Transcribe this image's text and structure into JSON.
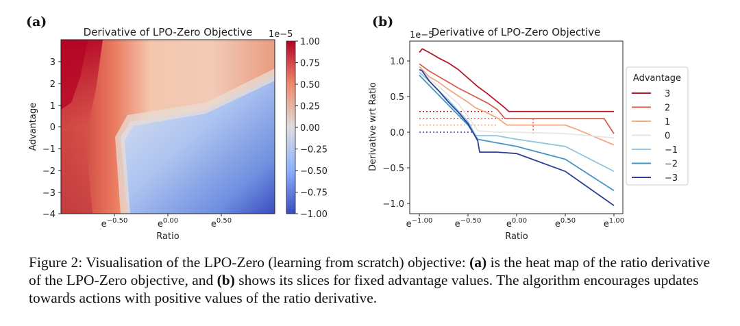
{
  "panel_a": {
    "tag": "(a)",
    "chart_data": {
      "type": "heatmap",
      "title": "Derivative of LPO-Zero Objective",
      "xlabel": "Ratio",
      "ylabel": "Advantage",
      "x_ticks": [
        "e^{-0.50}",
        "e^{0.00}",
        "e^{0.50}"
      ],
      "y_ticks": [
        "3",
        "2",
        "1",
        "0",
        "−1",
        "−2",
        "−3",
        "−4"
      ],
      "xlim": [
        -1.0,
        1.0
      ],
      "ylim": [
        -4,
        4
      ],
      "colorbar": {
        "scale_label": "1e−5",
        "ticks": [
          "1.00",
          "0.75",
          "0.50",
          "0.25",
          "0.00",
          "−0.25",
          "−0.50",
          "−0.75",
          "−1.00"
        ],
        "range": [
          -1.0,
          1.0
        ],
        "colormap": "coolwarm"
      }
    }
  },
  "panel_b": {
    "tag": "(b)",
    "chart_data": {
      "type": "line",
      "title": "Derivative of LPO-Zero Objective",
      "xlabel": "Ratio",
      "ylabel": "Derivative wrt Ratio",
      "scale_label": "1e−5",
      "x_ticks": [
        "e^{-1.00}",
        "e^{-0.50}",
        "e^{0.00}",
        "e^{0.50}",
        "e^{1.00}"
      ],
      "x_tick_values": [
        -1.0,
        -0.5,
        0.0,
        0.5,
        1.0
      ],
      "y_ticks": [
        "1.0",
        "0.5",
        "0.0",
        "−0.5",
        "−1.0"
      ],
      "y_tick_values": [
        1.0,
        0.5,
        0.0,
        -0.5,
        -1.0
      ],
      "xlim": [
        -1.05,
        1.05
      ],
      "ylim": [
        -1.12,
        1.3
      ],
      "legend": {
        "title": "Advantage",
        "position": "right"
      },
      "series": [
        {
          "name": "3",
          "color": "#b2182b",
          "x": [
            -1.0,
            -0.97,
            -0.9,
            -0.8,
            -0.7,
            -0.6,
            -0.5,
            -0.4,
            -0.3,
            -0.2,
            -0.12,
            -0.08,
            0.0,
            0.5,
            1.0
          ],
          "y": [
            1.12,
            1.17,
            1.12,
            1.04,
            0.97,
            0.88,
            0.76,
            0.64,
            0.54,
            0.43,
            0.34,
            0.29,
            0.29,
            0.29,
            0.29
          ],
          "dotted": {
            "y": 0.29,
            "x": [
              -1.0,
              -0.25
            ],
            "drop_x": -0.25,
            "drop_to": 0.29
          }
        },
        {
          "name": "2",
          "color": "#d6604d",
          "x": [
            -1.0,
            -0.9,
            -0.8,
            -0.7,
            -0.6,
            -0.5,
            -0.4,
            -0.3,
            -0.2,
            -0.12,
            0.0,
            0.5,
            0.9,
            1.0
          ],
          "y": [
            0.96,
            0.86,
            0.78,
            0.7,
            0.62,
            0.55,
            0.48,
            0.41,
            0.32,
            0.19,
            0.19,
            0.19,
            0.19,
            -0.02
          ],
          "dotted": {
            "y": 0.19,
            "x": [
              -1.0,
              0.17
            ],
            "drop_x": 0.17,
            "drop_to": -0.02
          }
        },
        {
          "name": "1",
          "color": "#f4a582",
          "x": [
            -1.0,
            -0.9,
            -0.8,
            -0.7,
            -0.6,
            -0.5,
            -0.42,
            -0.3,
            -0.2,
            -0.1,
            0.0,
            0.5,
            0.62,
            1.0
          ],
          "y": [
            0.92,
            0.78,
            0.7,
            0.6,
            0.51,
            0.42,
            0.34,
            0.27,
            0.2,
            0.1,
            0.1,
            0.1,
            0.04,
            -0.18
          ],
          "dotted": {
            "y": 0.1,
            "x": [
              -1.0,
              -0.2
            ]
          }
        },
        {
          "name": "0",
          "color": "#e6e6e6",
          "x": [
            -1.0,
            -0.9,
            -0.8,
            -0.7,
            -0.6,
            -0.5,
            -0.4,
            -0.2,
            0.0,
            0.5,
            1.0
          ],
          "y": [
            0.88,
            0.75,
            0.64,
            0.52,
            0.4,
            0.22,
            0.02,
            0.0,
            0.0,
            -0.02,
            -0.08
          ]
        },
        {
          "name": "-1",
          "color": "#92c5de",
          "x": [
            -1.0,
            -0.9,
            -0.8,
            -0.7,
            -0.6,
            -0.5,
            -0.42,
            -0.2,
            0.0,
            0.5,
            1.0
          ],
          "y": [
            0.84,
            0.72,
            0.58,
            0.45,
            0.3,
            0.15,
            -0.05,
            -0.05,
            -0.1,
            -0.2,
            -0.55
          ]
        },
        {
          "name": "-2",
          "color": "#4393c3",
          "x": [
            -1.0,
            -0.9,
            -0.8,
            -0.7,
            -0.6,
            -0.5,
            -0.4,
            -0.2,
            0.0,
            0.5,
            1.0
          ],
          "y": [
            0.8,
            0.66,
            0.52,
            0.38,
            0.24,
            0.1,
            -0.1,
            -0.15,
            -0.2,
            -0.38,
            -0.82
          ]
        },
        {
          "name": "-3",
          "color": "#2c3f99",
          "x": [
            -1.0,
            -0.97,
            -0.9,
            -0.8,
            -0.7,
            -0.6,
            -0.5,
            -0.45,
            -0.4,
            -0.38,
            -0.2,
            0.0,
            0.5,
            1.0
          ],
          "y": [
            0.88,
            0.86,
            0.72,
            0.58,
            0.42,
            0.28,
            0.12,
            0.0,
            -0.12,
            -0.28,
            -0.28,
            -0.3,
            -0.55,
            -1.03
          ],
          "dotted": {
            "y": 0.0,
            "x": [
              -1.0,
              -0.45
            ]
          }
        }
      ]
    }
  },
  "caption": {
    "lead": "Figure 2: Visualisation of the LPO-Zero (learning from scratch) objective: ",
    "a_tag": "(a)",
    "mid1": " is the heat map of the ratio derivative of the LPO-Zero objective, and ",
    "b_tag": "(b)",
    "mid2": " shows its slices for fixed advantage values. The algorithm encourages updates towards actions with positive values of the ratio derivative."
  }
}
